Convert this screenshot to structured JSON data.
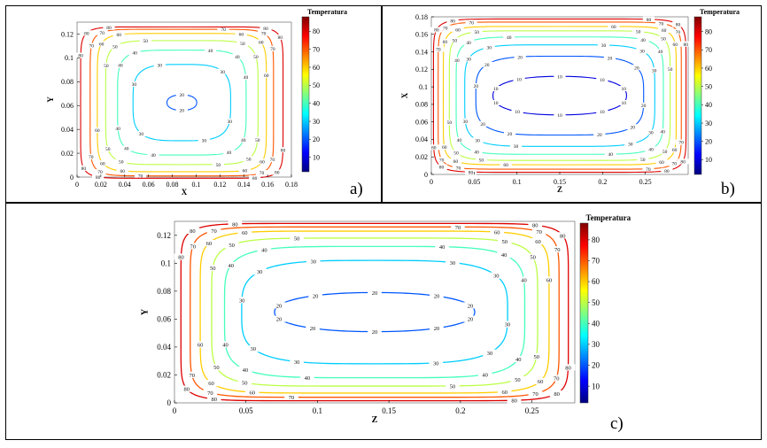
{
  "colorbar_title": "Temperatura",
  "colormap": [
    "#00007f",
    "#0000ff",
    "#0080ff",
    "#00ffff",
    "#80ff80",
    "#ffff00",
    "#ff8000",
    "#ff0000",
    "#7f0000"
  ],
  "chart_data": [
    {
      "id": "a",
      "panel_label": "a)",
      "type": "contour",
      "title": "",
      "xlabel": "X",
      "ylabel": "Y",
      "xlim": [
        0,
        0.18
      ],
      "ylim": [
        0,
        0.13
      ],
      "xticks": [
        0,
        0.02,
        0.04,
        0.06,
        0.08,
        0.1,
        0.12,
        0.14,
        0.16,
        0.18
      ],
      "xtick_labels": [
        "0",
        "0.02",
        "0.04",
        "0.06",
        "0.08",
        "0.1",
        "0.12",
        "0.14",
        "0.16",
        "0.18"
      ],
      "yticks": [
        0,
        0.02,
        0.04,
        0.06,
        0.08,
        0.1,
        0.12
      ],
      "ytick_labels": [
        "0",
        "0.02",
        "0.04",
        "0.06",
        "0.08",
        "0.1",
        "0.12"
      ],
      "colorbar": {
        "title": "Temperatura",
        "ticks": [
          10,
          20,
          30,
          40,
          50,
          60,
          70,
          80
        ],
        "range": [
          2,
          88
        ]
      },
      "center": [
        0.088,
        0.0625
      ],
      "levels": [
        {
          "value": 20,
          "hx": 0.0125,
          "hy": 0.0065,
          "label": "20"
        },
        {
          "value": 30,
          "hx": 0.041,
          "hy": 0.032,
          "label": "30"
        },
        {
          "value": 40,
          "hx": 0.054,
          "hy": 0.044,
          "label": "40"
        },
        {
          "value": 50,
          "hx": 0.064,
          "hy": 0.052,
          "label": "50"
        },
        {
          "value": 60,
          "hx": 0.071,
          "hy": 0.058,
          "label": "60"
        },
        {
          "value": 70,
          "hx": 0.077,
          "hy": 0.0615,
          "label": "70"
        },
        {
          "value": 80,
          "hx": 0.085,
          "hy": 0.0635,
          "label": "80"
        }
      ]
    },
    {
      "id": "b",
      "panel_label": "b)",
      "type": "contour",
      "title": "",
      "xlabel": "Z",
      "ylabel": "X",
      "xlim": [
        0,
        0.3
      ],
      "ylim": [
        0,
        0.18
      ],
      "xticks": [
        0,
        0.05,
        0.1,
        0.15,
        0.2,
        0.25
      ],
      "xtick_labels": [
        "0",
        "0.05",
        "0.1",
        "0.15",
        "0.2",
        "0.25"
      ],
      "yticks": [
        0,
        0.02,
        0.04,
        0.06,
        0.08,
        0.1,
        0.12,
        0.14,
        0.16,
        0.18
      ],
      "ytick_labels": [
        "0",
        "0.02",
        "0.04",
        "0.06",
        "0.08",
        "0.1",
        "0.12",
        "0.14",
        "0.16",
        "0.18"
      ],
      "colorbar": {
        "title": "Temperatura",
        "ticks": [
          10,
          20,
          30,
          40,
          50,
          60,
          70,
          80
        ],
        "range": [
          2,
          88
        ]
      },
      "center": [
        0.15,
        0.09
      ],
      "levels": [
        {
          "value": 10,
          "hx": 0.078,
          "hy": 0.022,
          "label": "10"
        },
        {
          "value": 20,
          "hx": 0.098,
          "hy": 0.045,
          "label": "20"
        },
        {
          "value": 30,
          "hx": 0.111,
          "hy": 0.058,
          "label": "30"
        },
        {
          "value": 40,
          "hx": 0.121,
          "hy": 0.067,
          "label": "40"
        },
        {
          "value": 50,
          "hx": 0.129,
          "hy": 0.074,
          "label": "50"
        },
        {
          "value": 60,
          "hx": 0.136,
          "hy": 0.079,
          "label": "60"
        },
        {
          "value": 70,
          "hx": 0.142,
          "hy": 0.084,
          "label": "70"
        },
        {
          "value": 80,
          "hx": 0.1475,
          "hy": 0.0875,
          "label": "80"
        }
      ]
    },
    {
      "id": "c",
      "panel_label": "c)",
      "type": "contour",
      "title": "",
      "xlabel": "Z",
      "ylabel": "Y",
      "xlim": [
        0,
        0.28
      ],
      "ylim": [
        0,
        0.13
      ],
      "xticks": [
        0,
        0.05,
        0.1,
        0.15,
        0.2,
        0.25
      ],
      "xtick_labels": [
        "0",
        "0.05",
        "0.1",
        "0.15",
        "0.2",
        "0.25"
      ],
      "yticks": [
        0,
        0.02,
        0.04,
        0.06,
        0.08,
        0.1,
        0.12
      ],
      "ytick_labels": [
        "0",
        "0.02",
        "0.04",
        "0.06",
        "0.08",
        "0.1",
        "0.12"
      ],
      "colorbar": {
        "title": "Temperatura",
        "ticks": [
          10,
          20,
          30,
          40,
          50,
          60,
          70,
          80
        ],
        "range": [
          2,
          88
        ]
      },
      "center": [
        0.14,
        0.065
      ],
      "levels": [
        {
          "value": 20,
          "hx": 0.07,
          "hy": 0.014,
          "label": "20"
        },
        {
          "value": 30,
          "hx": 0.093,
          "hy": 0.037,
          "label": "30"
        },
        {
          "value": 40,
          "hx": 0.105,
          "hy": 0.047,
          "label": "40"
        },
        {
          "value": 50,
          "hx": 0.114,
          "hy": 0.053,
          "label": "50"
        },
        {
          "value": 60,
          "hx": 0.122,
          "hy": 0.058,
          "label": "60"
        },
        {
          "value": 70,
          "hx": 0.129,
          "hy": 0.061,
          "label": "70"
        },
        {
          "value": 80,
          "hx": 0.1355,
          "hy": 0.0635,
          "label": "80"
        }
      ]
    }
  ]
}
